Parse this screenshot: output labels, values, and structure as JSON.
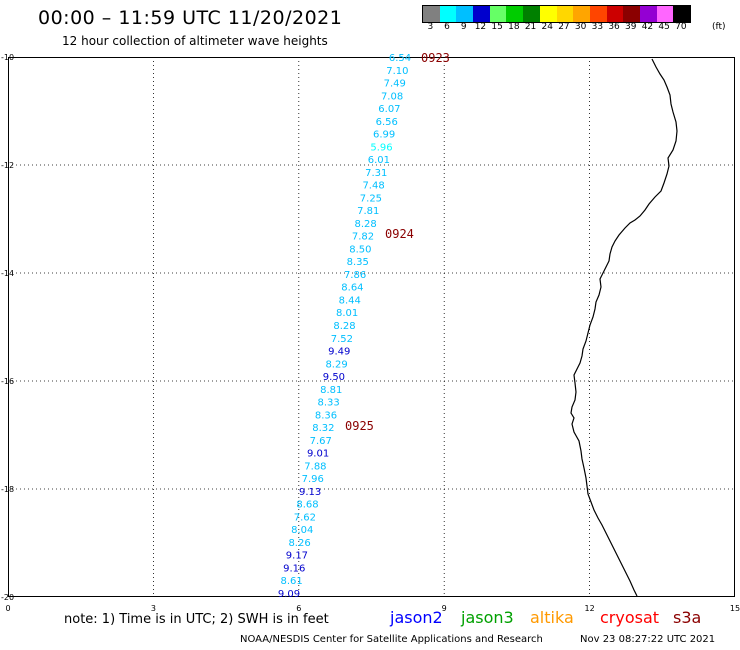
{
  "title": "00:00 – 11:59 UTC 11/20/2021",
  "subtitle": "12 hour collection of altimeter wave heights",
  "color_scale": {
    "unit": "(ft)",
    "labels": [
      "3",
      "6",
      "9",
      "12",
      "15",
      "18",
      "21",
      "24",
      "27",
      "30",
      "33",
      "36",
      "39",
      "42",
      "45",
      "70"
    ],
    "colors": [
      "#808080",
      "#00ffff",
      "#00bfff",
      "#0000cd",
      "#66ff66",
      "#00cc00",
      "#008000",
      "#ffff00",
      "#ffd700",
      "#ffa500",
      "#ff4500",
      "#cc0000",
      "#8b0000",
      "#9400d3",
      "#ff66ff",
      "#000000"
    ]
  },
  "map": {
    "lat_range": [
      -20,
      -10
    ],
    "lon_range": [
      0,
      15
    ],
    "lat_ticks": [
      "-10",
      "-12",
      "-14",
      "-16",
      "-18",
      "-20"
    ],
    "lon_ticks": [
      "0",
      "3",
      "6",
      "9",
      "12",
      "15"
    ],
    "grid": "dotted"
  },
  "wave_heights": [
    {
      "text": "6.54",
      "color": "#00bfff"
    },
    {
      "text": "7.10",
      "color": "#00bfff"
    },
    {
      "text": "7.49",
      "color": "#00bfff"
    },
    {
      "text": "7.08",
      "color": "#00bfff"
    },
    {
      "text": "6.07",
      "color": "#00bfff"
    },
    {
      "text": "6.56",
      "color": "#00bfff"
    },
    {
      "text": "6.99",
      "color": "#00bfff"
    },
    {
      "text": "5.96",
      "color": "#00ffff"
    },
    {
      "text": "6.01",
      "color": "#00bfff"
    },
    {
      "text": "7.31",
      "color": "#00bfff"
    },
    {
      "text": "7.48",
      "color": "#00bfff"
    },
    {
      "text": "7.25",
      "color": "#00bfff"
    },
    {
      "text": "7.81",
      "color": "#00bfff"
    },
    {
      "text": "8.28",
      "color": "#00bfff"
    },
    {
      "text": "7.82",
      "color": "#00bfff"
    },
    {
      "text": "8.50",
      "color": "#00bfff"
    },
    {
      "text": "8.35",
      "color": "#00bfff"
    },
    {
      "text": "7.86",
      "color": "#00bfff"
    },
    {
      "text": "8.64",
      "color": "#00bfff"
    },
    {
      "text": "8.44",
      "color": "#00bfff"
    },
    {
      "text": "8.01",
      "color": "#00bfff"
    },
    {
      "text": "8.28",
      "color": "#00bfff"
    },
    {
      "text": "7.52",
      "color": "#00bfff"
    },
    {
      "text": "9.49",
      "color": "#0000cd"
    },
    {
      "text": "8.29",
      "color": "#00bfff"
    },
    {
      "text": "9.50",
      "color": "#0000cd"
    },
    {
      "text": "8.81",
      "color": "#00bfff"
    },
    {
      "text": "8.33",
      "color": "#00bfff"
    },
    {
      "text": "8.36",
      "color": "#00bfff"
    },
    {
      "text": "8.32",
      "color": "#00bfff"
    },
    {
      "text": "7.67",
      "color": "#00bfff"
    },
    {
      "text": "9.01",
      "color": "#0000cd"
    },
    {
      "text": "7.88",
      "color": "#00bfff"
    },
    {
      "text": "7.96",
      "color": "#00bfff"
    },
    {
      "text": "9.13",
      "color": "#0000cd"
    },
    {
      "text": "8.68",
      "color": "#00bfff"
    },
    {
      "text": "7.62",
      "color": "#00bfff"
    },
    {
      "text": "8.04",
      "color": "#00bfff"
    },
    {
      "text": "8.26",
      "color": "#00bfff"
    },
    {
      "text": "9.17",
      "color": "#0000cd"
    },
    {
      "text": "9.16",
      "color": "#0000cd"
    },
    {
      "text": "8.61",
      "color": "#00bfff"
    },
    {
      "text": "9.09",
      "color": "#0000cd"
    }
  ],
  "pass_times": [
    "0923",
    "0924",
    "0925"
  ],
  "note": "note:  1) Time is in UTC;  2) SWH is in feet",
  "legend_satellites": [
    {
      "name": "jason2",
      "color": "#0000ff"
    },
    {
      "name": "jason3",
      "color": "#00a000"
    },
    {
      "name": "altika",
      "color": "#ff9900"
    },
    {
      "name": "cryosat",
      "color": "#ff0000"
    },
    {
      "name": "s3a",
      "color": "#8b0000"
    }
  ],
  "credit": "NOAA/NESDIS Center for Satellite Applications and Research",
  "timestamp": "Nov 23 08:27:22 UTC 2021"
}
